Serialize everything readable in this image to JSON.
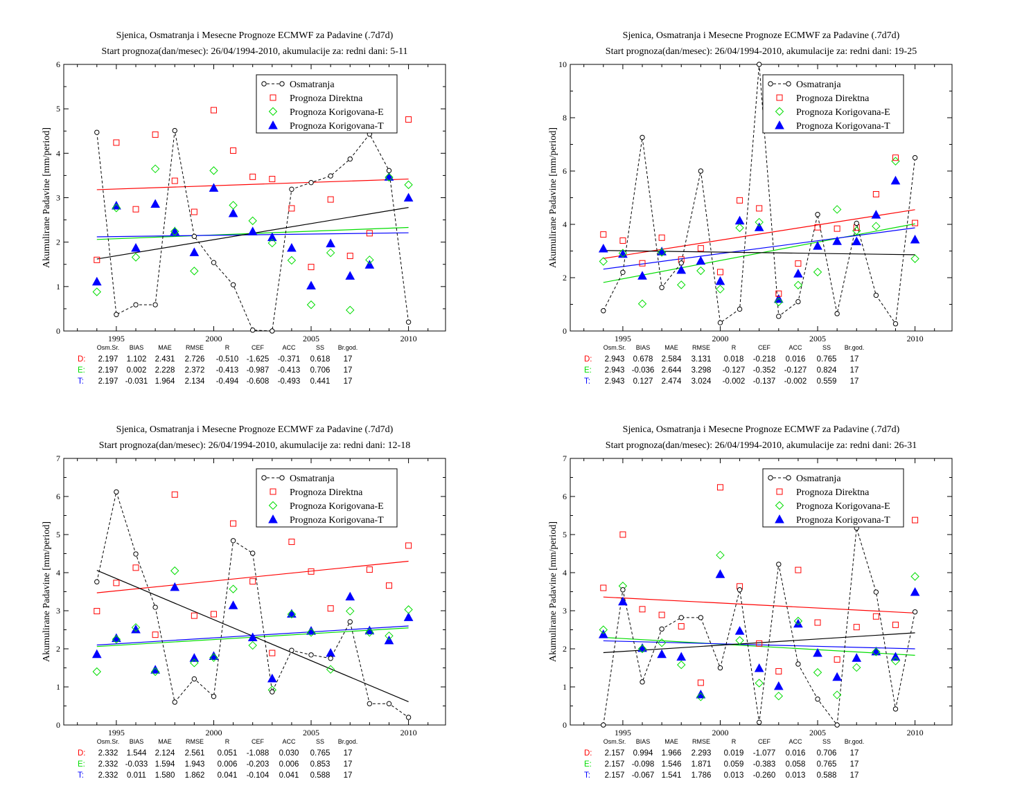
{
  "colors": {
    "observed": "#000000",
    "direct": "#ff0000",
    "corrected_e": "#00dd00",
    "corrected_t": "#0000ff"
  },
  "legend": [
    "Osmatranja",
    "Prognoza Direktna",
    "Prognoza Korigovana-E",
    "Prognoza Korigovana-T"
  ],
  "stats_headers": [
    "Osm.Sr.",
    "BIAS",
    "MAE",
    "RMSE",
    "R",
    "CEF",
    "ACC",
    "SS",
    "Br.god."
  ],
  "stats_row_labels": [
    "D:",
    "E:",
    "T:"
  ],
  "chart_data": [
    {
      "type": "scatter",
      "title": "Sjenica, Osmatranja i Mesecne Prognoze ECMWF za Padavine (.7d7d)",
      "subtitle": "Start prognoza(dan/mesec): 26/04/1994-2010, akumulacije za: redni dani: 5-11",
      "ylabel": "Akumulirane Padavine [mm/period]",
      "xlim": [
        1992.3,
        2011.9
      ],
      "ylim": [
        0,
        6
      ],
      "xticks": [
        1995,
        2000,
        2005,
        2010
      ],
      "yticks": [
        0,
        1,
        2,
        3,
        4,
        5,
        6
      ],
      "x": [
        1994,
        1995,
        1996,
        1997,
        1998,
        1999,
        2000,
        2001,
        2002,
        2003,
        2004,
        2005,
        2006,
        2007,
        2008,
        2009,
        2010
      ],
      "series": [
        {
          "name": "Osmatranja",
          "values": [
            4.47,
            0.37,
            0.59,
            0.59,
            4.51,
            2.13,
            1.54,
            1.04,
            0.02,
            0.0,
            3.19,
            3.34,
            3.49,
            3.87,
            4.43,
            3.61,
            0.2
          ]
        },
        {
          "name": "Prognoza Direktna",
          "values": [
            1.6,
            4.24,
            2.74,
            4.42,
            3.38,
            2.68,
            4.97,
            4.06,
            3.47,
            3.42,
            2.76,
            1.44,
            2.96,
            1.69,
            2.2,
            null,
            4.76
          ]
        },
        {
          "name": "Prognoza Korigovana-E",
          "values": [
            0.88,
            2.77,
            1.66,
            3.65,
            2.24,
            1.35,
            3.61,
            2.83,
            2.48,
            1.98,
            1.59,
            0.59,
            1.76,
            0.47,
            1.6,
            3.46,
            3.29
          ]
        },
        {
          "name": "Prognoza Korigovana-T",
          "values": [
            1.11,
            2.82,
            1.87,
            2.86,
            2.24,
            1.77,
            3.22,
            2.65,
            2.24,
            2.11,
            1.87,
            1.02,
            1.97,
            1.24,
            1.49,
            3.47,
            3.0
          ]
        }
      ],
      "trends": [
        {
          "color": "#ff0000",
          "from": [
            1994,
            3.18
          ],
          "to": [
            2010,
            3.42
          ]
        },
        {
          "color": "#00dd00",
          "from": [
            1994,
            2.06
          ],
          "to": [
            2010,
            2.33
          ]
        },
        {
          "color": "#0000ff",
          "from": [
            1994,
            2.12
          ],
          "to": [
            2010,
            2.21
          ]
        },
        {
          "color": "#000000",
          "from": [
            1994,
            1.62
          ],
          "to": [
            2010,
            2.78
          ]
        }
      ],
      "stats": [
        [
          "2.197",
          "1.102",
          "2.431",
          "2.726",
          "-0.510",
          "-1.625",
          "-0.371",
          "0.618",
          "17"
        ],
        [
          "2.197",
          "0.002",
          "2.228",
          "2.372",
          "-0.413",
          "-0.987",
          "-0.413",
          "0.706",
          "17"
        ],
        [
          "2.197",
          "-0.031",
          "1.964",
          "2.134",
          "-0.494",
          "-0.608",
          "-0.493",
          "0.441",
          "17"
        ]
      ]
    },
    {
      "type": "scatter",
      "title": "Sjenica, Osmatranja i Mesecne Prognoze ECMWF za Padavine (.7d7d)",
      "subtitle": "Start prognoza(dan/mesec): 26/04/1994-2010, akumulacije za: redni dani: 19-25",
      "ylabel": "Akumulirane Padavine [mm/period]",
      "xlim": [
        1992.3,
        2011.9
      ],
      "ylim": [
        0,
        10
      ],
      "xticks": [
        1995,
        2000,
        2005,
        2010
      ],
      "yticks": [
        0,
        2,
        4,
        6,
        8,
        10
      ],
      "x": [
        1994,
        1995,
        1996,
        1997,
        1998,
        1999,
        2000,
        2001,
        2002,
        2003,
        2004,
        2005,
        2006,
        2007,
        2008,
        2009,
        2010
      ],
      "series": [
        {
          "name": "Osmatranja",
          "values": [
            0.76,
            2.2,
            7.26,
            1.63,
            2.55,
            6.0,
            0.31,
            0.82,
            10.0,
            0.55,
            1.1,
            4.37,
            0.65,
            4.04,
            1.34,
            0.27,
            6.5
          ]
        },
        {
          "name": "Prognoza Direktna",
          "values": [
            3.62,
            3.39,
            2.54,
            3.5,
            2.68,
            3.1,
            2.21,
            4.9,
            4.6,
            1.4,
            2.53,
            3.89,
            3.84,
            3.88,
            5.13,
            6.5,
            4.05
          ]
        },
        {
          "name": "Prognoza Korigovana-E",
          "values": [
            2.61,
            2.92,
            1.02,
            2.95,
            1.73,
            2.26,
            1.57,
            3.87,
            4.08,
            1.09,
            1.72,
            2.21,
            4.56,
            3.76,
            3.93,
            6.37,
            2.71
          ]
        },
        {
          "name": "Prognoza Korigovana-T",
          "values": [
            3.09,
            2.89,
            2.07,
            2.98,
            2.29,
            2.63,
            1.87,
            4.14,
            3.89,
            1.2,
            2.15,
            3.19,
            3.37,
            3.36,
            4.36,
            5.64,
            3.43
          ]
        }
      ],
      "trends": [
        {
          "color": "#ff0000",
          "from": [
            1994,
            2.72
          ],
          "to": [
            2010,
            4.55
          ]
        },
        {
          "color": "#00dd00",
          "from": [
            1994,
            1.82
          ],
          "to": [
            2010,
            4.02
          ]
        },
        {
          "color": "#0000ff",
          "from": [
            1994,
            2.32
          ],
          "to": [
            2010,
            3.87
          ]
        },
        {
          "color": "#000000",
          "from": [
            1994,
            3.02
          ],
          "to": [
            2010,
            2.86
          ]
        }
      ],
      "stats": [
        [
          "2.943",
          "0.678",
          "2.584",
          "3.131",
          "0.018",
          "-0.218",
          "0.016",
          "0.765",
          "17"
        ],
        [
          "2.943",
          "-0.036",
          "2.644",
          "3.298",
          "-0.127",
          "-0.352",
          "-0.127",
          "0.824",
          "17"
        ],
        [
          "2.943",
          "0.127",
          "2.474",
          "3.024",
          "-0.002",
          "-0.137",
          "-0.002",
          "0.559",
          "17"
        ]
      ]
    },
    {
      "type": "scatter",
      "title": "Sjenica, Osmatranja i Mesecne Prognoze ECMWF za Padavine (.7d7d)",
      "subtitle": "Start prognoza(dan/mesec): 26/04/1994-2010, akumulacije za: redni dani: 12-18",
      "ylabel": "Akumulirane Padavine [mm/period]",
      "xlim": [
        1992.3,
        2011.9
      ],
      "ylim": [
        0,
        7
      ],
      "xticks": [
        1995,
        2000,
        2005,
        2010
      ],
      "yticks": [
        0,
        1,
        2,
        3,
        4,
        5,
        6,
        7
      ],
      "x": [
        1994,
        1995,
        1996,
        1997,
        1998,
        1999,
        2000,
        2001,
        2002,
        2003,
        2004,
        2005,
        2006,
        2007,
        2008,
        2009,
        2010
      ],
      "series": [
        {
          "name": "Osmatranja",
          "values": [
            3.76,
            6.12,
            4.49,
            3.09,
            0.6,
            1.21,
            0.75,
            4.84,
            4.51,
            0.87,
            1.96,
            1.84,
            1.75,
            2.71,
            0.56,
            0.56,
            0.2
          ]
        },
        {
          "name": "Prognoza Direktna",
          "values": [
            2.99,
            3.73,
            4.13,
            2.37,
            6.05,
            2.87,
            2.91,
            5.29,
            3.77,
            1.89,
            4.81,
            4.03,
            3.06,
            null,
            4.08,
            3.66,
            4.71
          ]
        },
        {
          "name": "Prognoza Korigovana-E",
          "values": [
            1.4,
            2.25,
            2.56,
            1.4,
            4.05,
            1.63,
            1.77,
            3.57,
            2.09,
            0.92,
            2.91,
            2.43,
            1.46,
            2.99,
            2.43,
            2.34,
            3.03
          ]
        },
        {
          "name": "Prognoza Korigovana-T",
          "values": [
            1.86,
            2.28,
            2.51,
            1.45,
            3.62,
            1.76,
            1.81,
            3.14,
            2.3,
            1.22,
            2.92,
            2.47,
            1.89,
            3.37,
            2.48,
            2.22,
            2.83
          ]
        }
      ],
      "trends": [
        {
          "color": "#ff0000",
          "from": [
            1994,
            3.47
          ],
          "to": [
            2010,
            4.3
          ]
        },
        {
          "color": "#00dd00",
          "from": [
            1994,
            2.06
          ],
          "to": [
            2010,
            2.55
          ]
        },
        {
          "color": "#0000ff",
          "from": [
            1994,
            2.1
          ],
          "to": [
            2010,
            2.6
          ]
        },
        {
          "color": "#000000",
          "from": [
            1994,
            4.06
          ],
          "to": [
            2010,
            0.61
          ]
        }
      ],
      "stats": [
        [
          "2.332",
          "1.544",
          "2.124",
          "2.561",
          "0.051",
          "-1.088",
          "0.030",
          "0.765",
          "17"
        ],
        [
          "2.332",
          "-0.033",
          "1.594",
          "1.943",
          "0.006",
          "-0.203",
          "0.006",
          "0.853",
          "17"
        ],
        [
          "2.332",
          "0.011",
          "1.580",
          "1.862",
          "0.041",
          "-0.104",
          "0.041",
          "0.588",
          "17"
        ]
      ]
    },
    {
      "type": "scatter",
      "title": "Sjenica, Osmatranja i Mesecne Prognoze ECMWF za Padavine (.7d7d)",
      "subtitle": "Start prognoza(dan/mesec): 26/04/1994-2010, akumulacije za: redni dani: 26-31",
      "ylabel": "Akumulirane Padavine [mm/period]",
      "xlim": [
        1992.3,
        2011.9
      ],
      "ylim": [
        0,
        7
      ],
      "xticks": [
        1995,
        2000,
        2005,
        2010
      ],
      "yticks": [
        0,
        1,
        2,
        3,
        4,
        5,
        6,
        7
      ],
      "x": [
        1994,
        1995,
        1996,
        1997,
        1998,
        1999,
        2000,
        2001,
        2002,
        2003,
        2004,
        2005,
        2006,
        2007,
        2008,
        2009,
        2010
      ],
      "series": [
        {
          "name": "Osmatranja",
          "values": [
            0.0,
            3.55,
            1.13,
            2.52,
            2.82,
            2.82,
            1.5,
            3.55,
            0.07,
            4.22,
            1.6,
            0.68,
            0.0,
            5.17,
            3.49,
            0.42,
            2.97
          ]
        },
        {
          "name": "Prognoza Direktna",
          "values": [
            3.6,
            5.0,
            3.04,
            2.89,
            2.59,
            1.11,
            6.24,
            3.64,
            2.14,
            1.41,
            4.07,
            2.69,
            1.72,
            2.57,
            2.85,
            2.63,
            5.38
          ]
        },
        {
          "name": "Prognoza Korigovana-E",
          "values": [
            2.5,
            3.65,
            2.0,
            2.16,
            1.58,
            0.74,
            4.46,
            2.22,
            1.1,
            0.76,
            2.73,
            1.38,
            0.79,
            1.51,
            1.92,
            1.68,
            3.9
          ]
        },
        {
          "name": "Prognoza Korigovana-T",
          "values": [
            2.38,
            3.24,
            2.02,
            1.86,
            1.79,
            0.8,
            3.96,
            2.47,
            1.49,
            1.02,
            2.66,
            1.89,
            1.26,
            1.76,
            1.93,
            1.79,
            3.49
          ]
        }
      ],
      "trends": [
        {
          "color": "#ff0000",
          "from": [
            1994,
            3.36
          ],
          "to": [
            2010,
            2.94
          ]
        },
        {
          "color": "#00dd00",
          "from": [
            1994,
            2.3
          ],
          "to": [
            2010,
            1.83
          ]
        },
        {
          "color": "#0000ff",
          "from": [
            1994,
            2.21
          ],
          "to": [
            2010,
            2.0
          ]
        },
        {
          "color": "#000000",
          "from": [
            1994,
            1.9
          ],
          "to": [
            2010,
            2.42
          ]
        }
      ],
      "stats": [
        [
          "2.157",
          "0.994",
          "1.966",
          "2.293",
          "0.019",
          "-1.077",
          "0.016",
          "0.706",
          "17"
        ],
        [
          "2.157",
          "-0.098",
          "1.546",
          "1.871",
          "0.059",
          "-0.383",
          "0.058",
          "0.765",
          "17"
        ],
        [
          "2.157",
          "-0.067",
          "1.541",
          "1.786",
          "0.013",
          "-0.260",
          "0.013",
          "0.588",
          "17"
        ]
      ]
    }
  ]
}
